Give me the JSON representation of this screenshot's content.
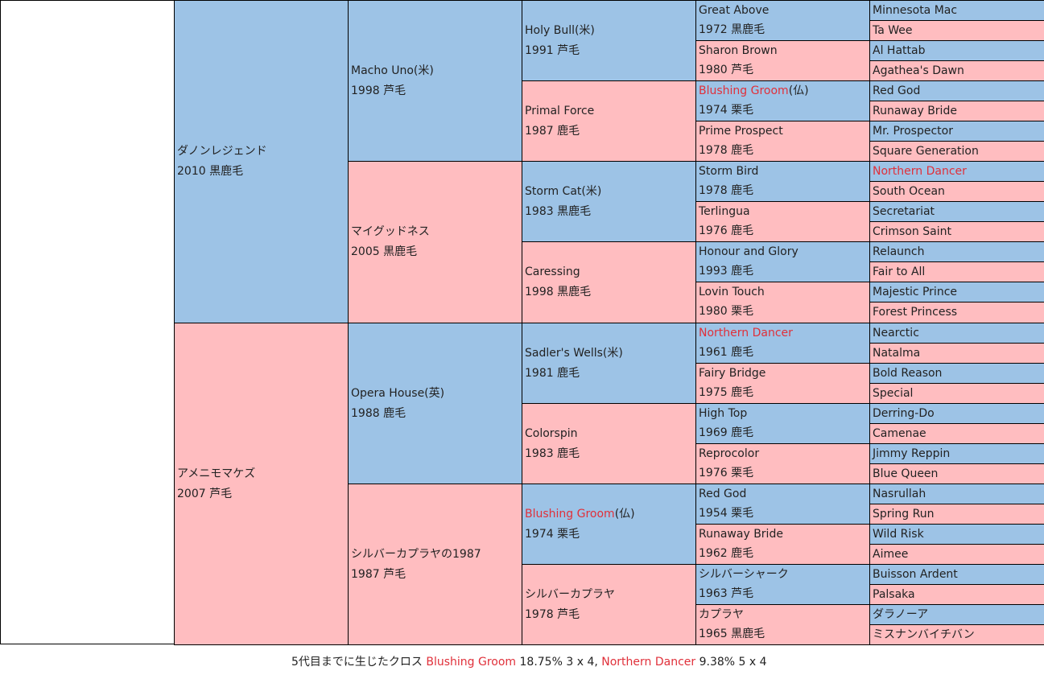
{
  "subject": {
    "name": "",
    "year": ""
  },
  "gen1": [
    {
      "name": "ダノンレジェンド",
      "year": "2010 黒鹿毛",
      "sex": "male",
      "highlight": false
    },
    {
      "name": "アメニモマケズ",
      "year": "2007 芦毛",
      "sex": "female",
      "highlight": false
    }
  ],
  "gen2": [
    {
      "name": "Macho Uno(米)",
      "year": "1998 芦毛",
      "sex": "male",
      "highlight": false
    },
    {
      "name": "マイグッドネス",
      "year": "2005 黒鹿毛",
      "sex": "female",
      "highlight": false
    },
    {
      "name": "Opera House(英)",
      "year": "1988 鹿毛",
      "sex": "male",
      "highlight": false
    },
    {
      "name": "シルバーカプラヤの1987",
      "year": "1987 芦毛",
      "sex": "female",
      "highlight": false
    }
  ],
  "gen3": [
    {
      "name": "Holy Bull(米)",
      "year": "1991 芦毛",
      "sex": "male",
      "highlight": false
    },
    {
      "name": "Primal Force",
      "year": "1987 鹿毛",
      "sex": "female",
      "highlight": false
    },
    {
      "name": "Storm Cat(米)",
      "year": "1983 黒鹿毛",
      "sex": "male",
      "highlight": false
    },
    {
      "name": "Caressing",
      "year": "1998 黒鹿毛",
      "sex": "female",
      "highlight": false
    },
    {
      "name": "Sadler's Wells(米)",
      "year": "1981 鹿毛",
      "sex": "male",
      "highlight": false
    },
    {
      "name": "Colorspin",
      "year": "1983 鹿毛",
      "sex": "female",
      "highlight": false
    },
    {
      "name": "Blushing Groom",
      "suffix": "(仏)",
      "year": "1974 栗毛",
      "sex": "male",
      "highlight": true
    },
    {
      "name": "シルバーカプラヤ",
      "year": "1978 芦毛",
      "sex": "female",
      "highlight": false
    }
  ],
  "gen4": [
    {
      "name": "Great Above",
      "year": "1972 黒鹿毛",
      "sex": "male",
      "highlight": false
    },
    {
      "name": "Sharon Brown",
      "year": "1980 芦毛",
      "sex": "female",
      "highlight": false
    },
    {
      "name": "Blushing Groom",
      "suffix": "(仏)",
      "year": "1974 栗毛",
      "sex": "male",
      "highlight": true
    },
    {
      "name": "Prime Prospect",
      "year": "1978 鹿毛",
      "sex": "female",
      "highlight": false
    },
    {
      "name": "Storm Bird",
      "year": "1978 鹿毛",
      "sex": "male",
      "highlight": false
    },
    {
      "name": "Terlingua",
      "year": "1976 鹿毛",
      "sex": "female",
      "highlight": false
    },
    {
      "name": "Honour and Glory",
      "year": "1993 鹿毛",
      "sex": "male",
      "highlight": false
    },
    {
      "name": "Lovin Touch",
      "year": "1980 栗毛",
      "sex": "female",
      "highlight": false
    },
    {
      "name": "Northern Dancer",
      "year": "1961 鹿毛",
      "sex": "male",
      "highlight": true
    },
    {
      "name": "Fairy Bridge",
      "year": "1975 鹿毛",
      "sex": "female",
      "highlight": false
    },
    {
      "name": "High Top",
      "year": "1969 鹿毛",
      "sex": "male",
      "highlight": false
    },
    {
      "name": "Reprocolor",
      "year": "1976 栗毛",
      "sex": "female",
      "highlight": false
    },
    {
      "name": "Red God",
      "year": "1954 栗毛",
      "sex": "male",
      "highlight": false
    },
    {
      "name": "Runaway Bride",
      "year": "1962 鹿毛",
      "sex": "female",
      "highlight": false
    },
    {
      "name": "シルバーシャーク",
      "year": "1963 芦毛",
      "sex": "male",
      "highlight": false
    },
    {
      "name": "カプラヤ",
      "year": "1965 黒鹿毛",
      "sex": "female",
      "highlight": false
    }
  ],
  "gen5": [
    {
      "name": "Minnesota Mac",
      "sex": "male",
      "highlight": false
    },
    {
      "name": "Ta Wee",
      "sex": "female",
      "highlight": false
    },
    {
      "name": "Al Hattab",
      "sex": "male",
      "highlight": false
    },
    {
      "name": "Agathea's Dawn",
      "sex": "female",
      "highlight": false
    },
    {
      "name": "Red God",
      "sex": "male",
      "highlight": false
    },
    {
      "name": "Runaway Bride",
      "sex": "female",
      "highlight": false
    },
    {
      "name": "Mr. Prospector",
      "sex": "male",
      "highlight": false
    },
    {
      "name": "Square Generation",
      "sex": "female",
      "highlight": false
    },
    {
      "name": "Northern Dancer",
      "sex": "male",
      "highlight": true
    },
    {
      "name": "South Ocean",
      "sex": "female",
      "highlight": false
    },
    {
      "name": "Secretariat",
      "sex": "male",
      "highlight": false
    },
    {
      "name": "Crimson Saint",
      "sex": "female",
      "highlight": false
    },
    {
      "name": "Relaunch",
      "sex": "male",
      "highlight": false
    },
    {
      "name": "Fair to All",
      "sex": "female",
      "highlight": false
    },
    {
      "name": "Majestic Prince",
      "sex": "male",
      "highlight": false
    },
    {
      "name": "Forest Princess",
      "sex": "female",
      "highlight": false
    },
    {
      "name": "Nearctic",
      "sex": "male",
      "highlight": false
    },
    {
      "name": "Natalma",
      "sex": "female",
      "highlight": false
    },
    {
      "name": "Bold Reason",
      "sex": "male",
      "highlight": false
    },
    {
      "name": "Special",
      "sex": "female",
      "highlight": false
    },
    {
      "name": "Derring-Do",
      "sex": "male",
      "highlight": false
    },
    {
      "name": "Camenae",
      "sex": "female",
      "highlight": false
    },
    {
      "name": "Jimmy Reppin",
      "sex": "male",
      "highlight": false
    },
    {
      "name": "Blue Queen",
      "sex": "female",
      "highlight": false
    },
    {
      "name": "Nasrullah",
      "sex": "male",
      "highlight": false
    },
    {
      "name": "Spring Run",
      "sex": "female",
      "highlight": false
    },
    {
      "name": "Wild Risk",
      "sex": "male",
      "highlight": false
    },
    {
      "name": "Aimee",
      "sex": "female",
      "highlight": false
    },
    {
      "name": "Buisson Ardent",
      "sex": "male",
      "highlight": false
    },
    {
      "name": "Palsaka",
      "sex": "female",
      "highlight": false
    },
    {
      "name": "ダラノーア",
      "sex": "male",
      "highlight": false
    },
    {
      "name": "ミスナンバイチバン",
      "sex": "female",
      "highlight": false
    }
  ],
  "footer": {
    "prefix": "5代目までに生じたクロス ",
    "cross1_name": "Blushing Groom",
    "cross1_detail": " 18.75% 3 x 4, ",
    "cross2_name": "Northern Dancer",
    "cross2_detail": " 9.38% 5 x 4"
  },
  "colors": {
    "male": "#9dc3e6",
    "female": "#ffbdc0",
    "highlight_text": "#e0303a"
  }
}
